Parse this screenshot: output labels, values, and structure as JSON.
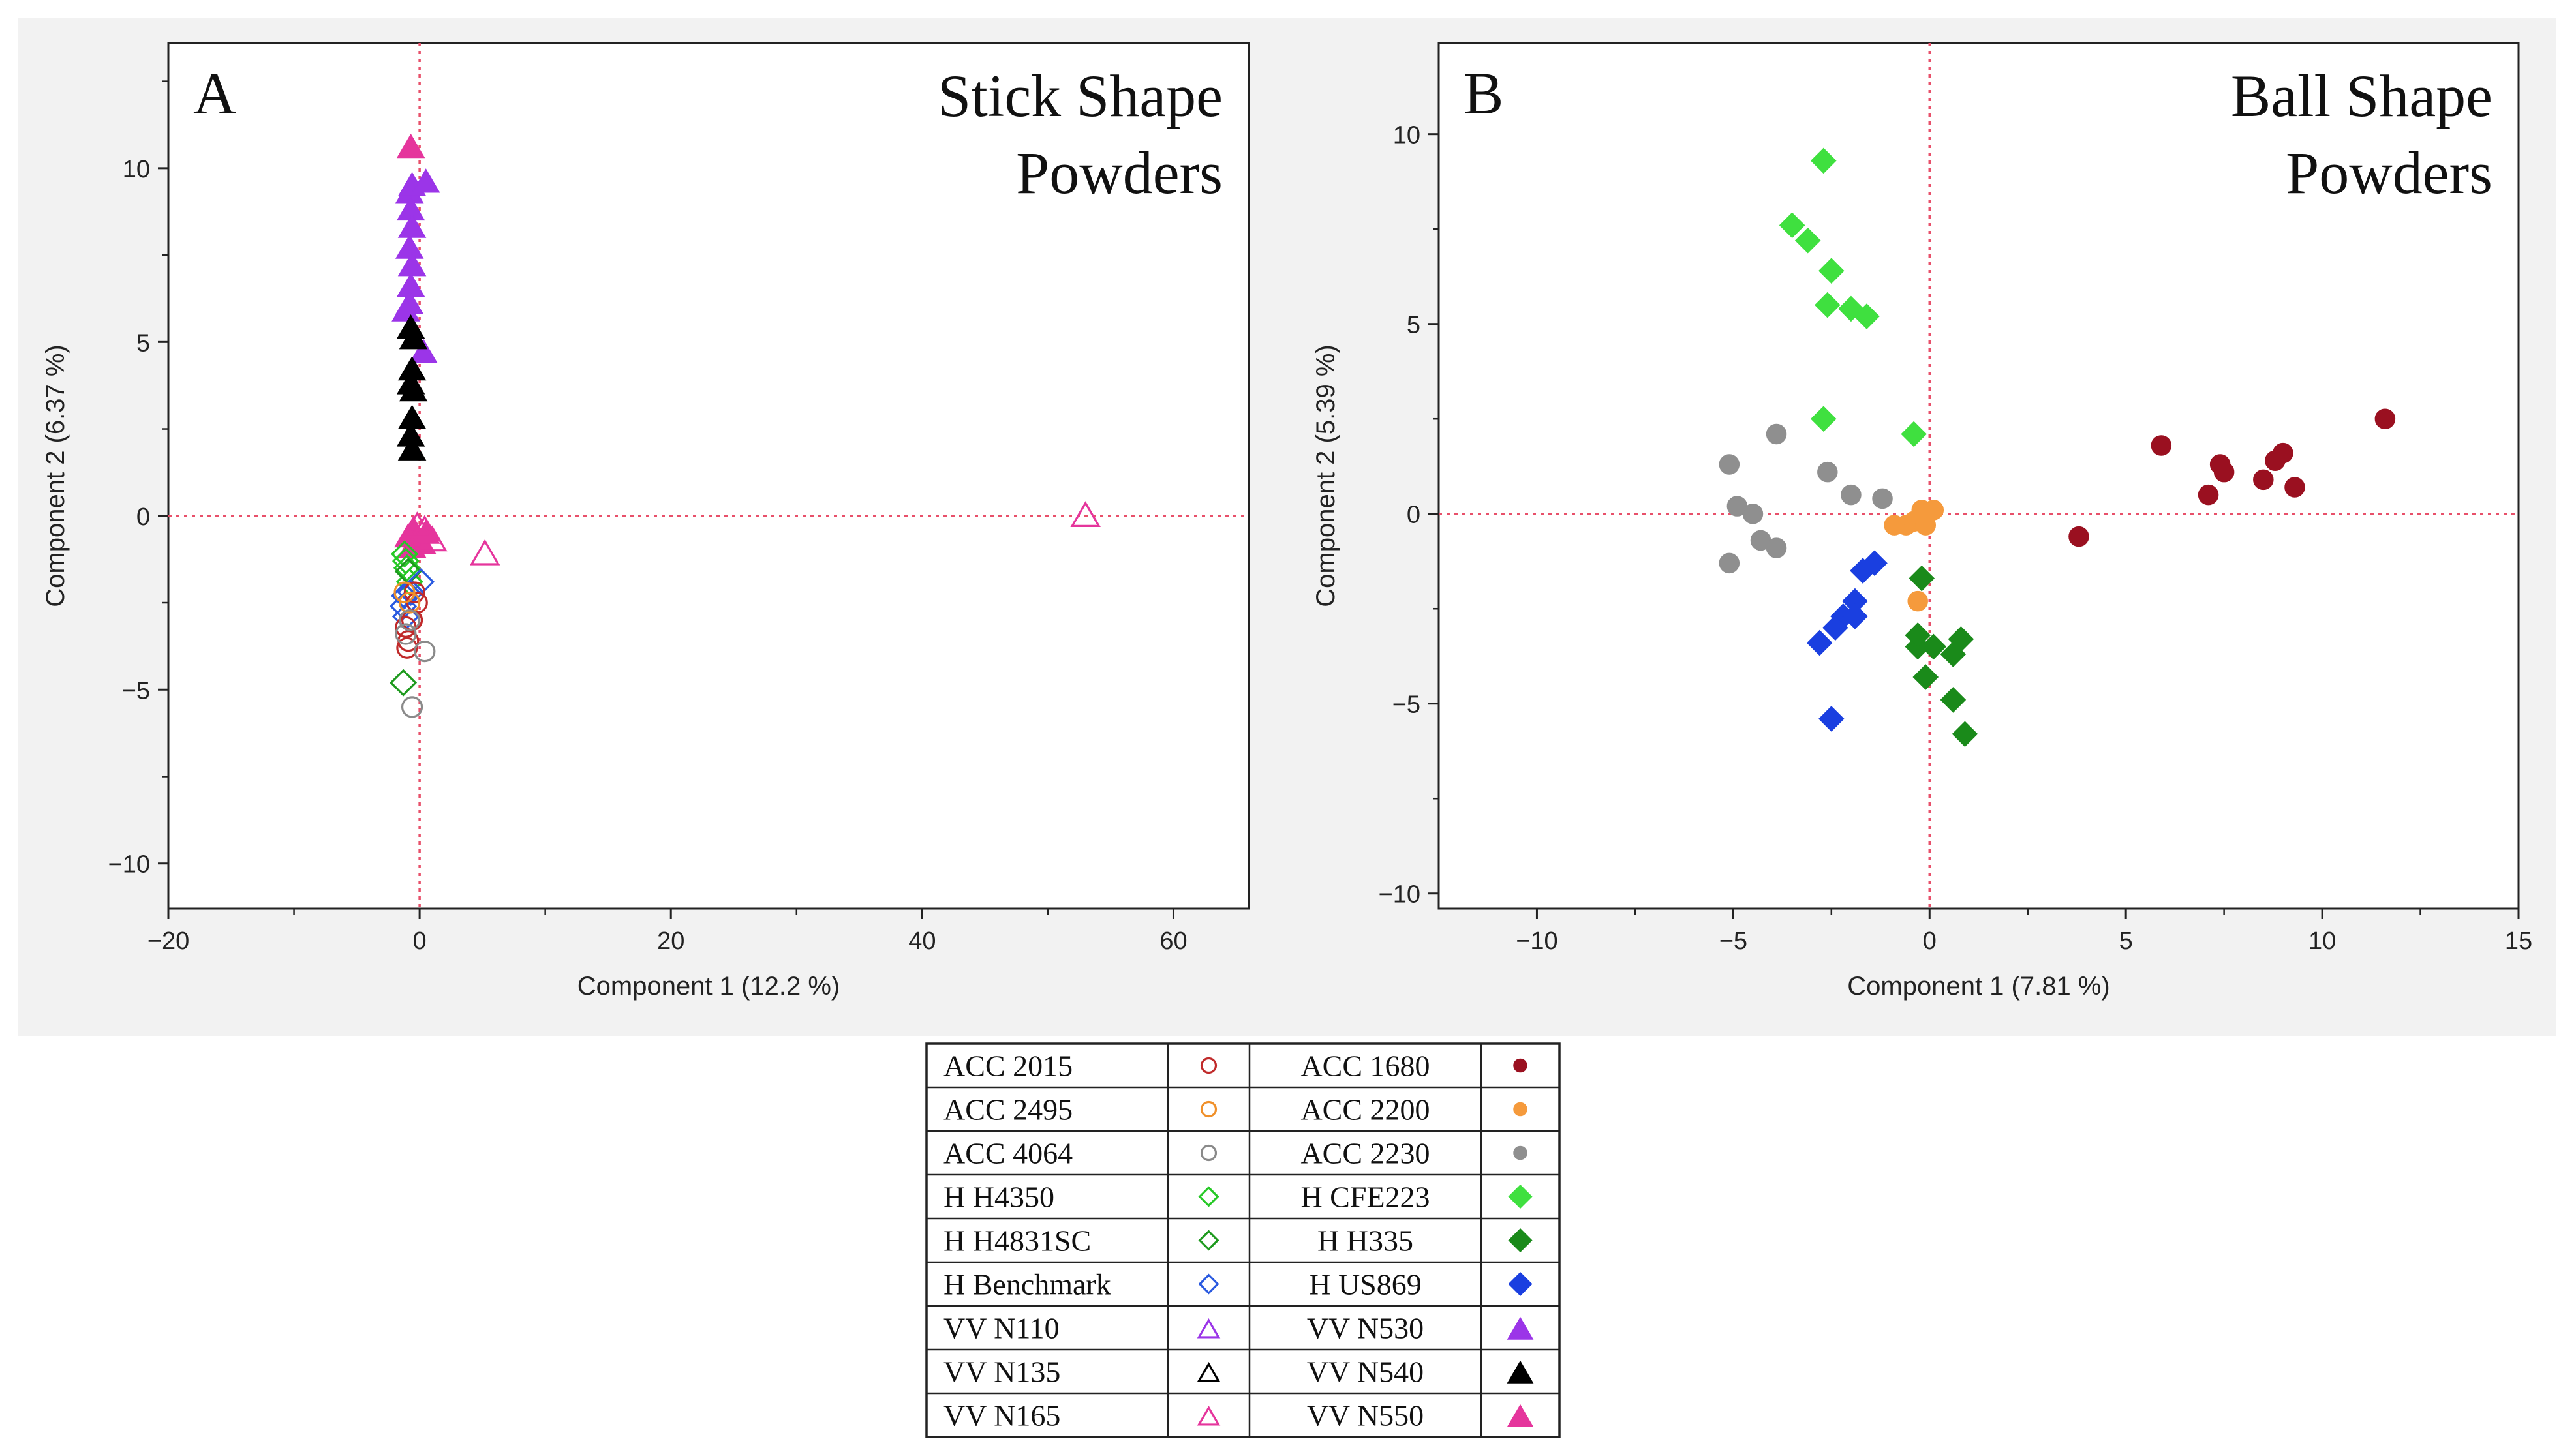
{
  "chart_data": [
    {
      "type": "scatter",
      "panel_label": "A",
      "title_lines": [
        "Stick Shape",
        "Powders"
      ],
      "xlabel": "Component 1  (12.2 %)",
      "ylabel": "Component 2  (6.37 %)",
      "xlim": [
        -20,
        66
      ],
      "ylim": [
        -11.3,
        13.6
      ],
      "xticks": [
        -20,
        0,
        20,
        40,
        60
      ],
      "yticks": [
        -10,
        -5,
        0,
        5,
        10
      ],
      "xtick_labels": [
        "−20",
        "0",
        "20",
        "40",
        "60"
      ],
      "ytick_labels": [
        "−10",
        "−5",
        "0",
        "5",
        "10"
      ],
      "xminor": [
        -10,
        10,
        30,
        50
      ],
      "yminor": [
        -7.5,
        -2.5,
        2.5,
        7.5,
        12.5
      ],
      "series": [
        {
          "name": "VV N530",
          "marker": "triangle",
          "filled": true,
          "color": "#9b35e8",
          "points": [
            [
              -0.8,
              9.3
            ],
            [
              -0.6,
              9.5
            ],
            [
              -0.7,
              8.8
            ],
            [
              -0.6,
              8.3
            ],
            [
              -0.8,
              7.7
            ],
            [
              -0.6,
              7.2
            ],
            [
              -0.7,
              6.6
            ],
            [
              -0.8,
              6.1
            ],
            [
              -1.1,
              5.9
            ],
            [
              0.5,
              9.6
            ],
            [
              0.3,
              4.7
            ]
          ]
        },
        {
          "name": "VV N550",
          "marker": "triangle",
          "filled": true,
          "color": "#e5359c",
          "points": [
            [
              -0.7,
              10.6
            ],
            [
              -0.5,
              -0.4
            ],
            [
              -0.3,
              -0.7
            ],
            [
              -0.6,
              -0.9
            ],
            [
              0.2,
              -0.8
            ],
            [
              0.5,
              -0.5
            ],
            [
              -0.9,
              -0.6
            ]
          ]
        },
        {
          "name": "VV N540",
          "marker": "triangle",
          "filled": true,
          "color": "#000000",
          "points": [
            [
              -0.7,
              5.4
            ],
            [
              -0.5,
              5.1
            ],
            [
              -0.6,
              4.2
            ],
            [
              -0.7,
              3.8
            ],
            [
              -0.5,
              3.6
            ],
            [
              -0.6,
              2.8
            ],
            [
              -0.7,
              2.3
            ],
            [
              -0.6,
              1.9
            ]
          ]
        },
        {
          "name": "VV N165",
          "marker": "triangle",
          "filled": false,
          "color": "#e5359c",
          "points": [
            [
              53,
              0
            ],
            [
              5.2,
              -1.1
            ],
            [
              1,
              -0.7
            ],
            [
              0.4,
              -0.4
            ],
            [
              -0.2,
              -0.3
            ]
          ]
        },
        {
          "name": "H H4350",
          "marker": "diamond",
          "filled": false,
          "color": "#27c927",
          "points": [
            [
              -1.2,
              -1.1
            ],
            [
              -1.0,
              -1.5
            ],
            [
              -0.8,
              -1.9
            ],
            [
              -1.1,
              -1.3
            ]
          ]
        },
        {
          "name": "H H4831SC",
          "marker": "diamond",
          "filled": false,
          "color": "#1e9a1e",
          "points": [
            [
              -1.3,
              -4.8
            ],
            [
              -0.9,
              -1.6
            ]
          ]
        },
        {
          "name": "H Benchmark",
          "marker": "diamond",
          "filled": false,
          "color": "#2a5ae0",
          "points": [
            [
              -1.3,
              -2.6
            ],
            [
              -1.1,
              -2.9
            ],
            [
              -0.7,
              -2.2
            ],
            [
              0.1,
              -1.9
            ],
            [
              -1.2,
              -2.3
            ]
          ]
        },
        {
          "name": "ACC 2015",
          "marker": "circle",
          "filled": false,
          "color": "#c02a2a",
          "points": [
            [
              -1.1,
              -3.2
            ],
            [
              -0.9,
              -3.6
            ],
            [
              -1.0,
              -3.8
            ],
            [
              -0.6,
              -3.0
            ],
            [
              -0.2,
              -2.5
            ],
            [
              -0.4,
              -2.2
            ]
          ]
        },
        {
          "name": "ACC 2495",
          "marker": "circle",
          "filled": false,
          "color": "#f0902a",
          "points": [
            [
              -1.2,
              -2.2
            ],
            [
              -0.8,
              -2.5
            ]
          ]
        },
        {
          "name": "ACC 4064",
          "marker": "circle",
          "filled": false,
          "color": "#8a8a8a",
          "points": [
            [
              -0.6,
              -5.5
            ],
            [
              0.4,
              -3.9
            ],
            [
              -1.1,
              -3.4
            ],
            [
              -0.8,
              -3.0
            ]
          ]
        }
      ]
    },
    {
      "type": "scatter",
      "panel_label": "B",
      "title_lines": [
        "Ball Shape",
        "Powders"
      ],
      "xlabel": "Component 1  (7.81 %)",
      "ylabel": "Component 2  (5.39 %)",
      "xlim": [
        -12.5,
        15
      ],
      "ylim": [
        -10.4,
        12.4
      ],
      "xticks": [
        -10,
        -5,
        0,
        5,
        10,
        15
      ],
      "yticks": [
        -10,
        -5,
        0,
        5,
        10
      ],
      "xtick_labels": [
        "−10",
        "−5",
        "0",
        "5",
        "10",
        "15"
      ],
      "ytick_labels": [
        "−10",
        "−5",
        "0",
        "5",
        "10"
      ],
      "xminor": [
        -12.5,
        -7.5,
        -2.5,
        2.5,
        7.5,
        12.5
      ],
      "yminor": [
        -7.5,
        -2.5,
        2.5,
        7.5
      ],
      "series": [
        {
          "name": "H CFE223",
          "marker": "diamond",
          "filled": true,
          "color": "#3fe03f",
          "points": [
            [
              -2.7,
              9.3
            ],
            [
              -3.5,
              7.6
            ],
            [
              -3.1,
              7.2
            ],
            [
              -2.5,
              6.4
            ],
            [
              -2.6,
              5.5
            ],
            [
              -2.0,
              5.4
            ],
            [
              -1.6,
              5.2
            ],
            [
              -2.7,
              2.5
            ],
            [
              -0.4,
              2.1
            ]
          ]
        },
        {
          "name": "ACC 2230",
          "marker": "circle",
          "filled": true,
          "color": "#8f8f8f",
          "points": [
            [
              -5.1,
              1.3
            ],
            [
              -3.9,
              2.1
            ],
            [
              -4.9,
              0.2
            ],
            [
              -4.5,
              0.0
            ],
            [
              -4.3,
              -0.7
            ],
            [
              -3.9,
              -0.9
            ],
            [
              -2.6,
              1.1
            ],
            [
              -2.0,
              0.5
            ],
            [
              -1.2,
              0.4
            ],
            [
              -5.1,
              -1.3
            ]
          ]
        },
        {
          "name": "ACC 2200",
          "marker": "circle",
          "filled": true,
          "color": "#f59a3c",
          "points": [
            [
              -0.2,
              0.1
            ],
            [
              -0.4,
              -0.2
            ],
            [
              -0.6,
              -0.3
            ],
            [
              -0.9,
              -0.3
            ],
            [
              -0.1,
              -0.3
            ],
            [
              0.1,
              0.1
            ],
            [
              -0.3,
              -2.3
            ]
          ]
        },
        {
          "name": "H US869",
          "marker": "diamond",
          "filled": true,
          "color": "#1a3fe0",
          "points": [
            [
              -1.4,
              -1.3
            ],
            [
              -1.7,
              -1.5
            ],
            [
              -1.9,
              -2.3
            ],
            [
              -2.2,
              -2.7
            ],
            [
              -2.4,
              -3.0
            ],
            [
              -2.8,
              -3.4
            ],
            [
              -2.5,
              -5.4
            ],
            [
              -1.9,
              -2.7
            ]
          ]
        },
        {
          "name": "H H335",
          "marker": "diamond",
          "filled": true,
          "color": "#1a8a1a",
          "points": [
            [
              -0.2,
              -1.7
            ],
            [
              -0.3,
              -3.5
            ],
            [
              0.1,
              -3.5
            ],
            [
              0.6,
              -3.7
            ],
            [
              0.8,
              -3.3
            ],
            [
              -0.1,
              -4.3
            ],
            [
              0.6,
              -4.9
            ],
            [
              0.9,
              -5.8
            ],
            [
              -0.3,
              -3.2
            ]
          ]
        },
        {
          "name": "ACC 1680",
          "marker": "circle",
          "filled": true,
          "color": "#9a1020",
          "points": [
            [
              3.8,
              -0.6
            ],
            [
              5.9,
              1.8
            ],
            [
              7.1,
              0.5
            ],
            [
              7.4,
              1.3
            ],
            [
              7.5,
              1.1
            ],
            [
              8.5,
              0.9
            ],
            [
              8.8,
              1.4
            ],
            [
              9.0,
              1.6
            ],
            [
              9.3,
              0.7
            ],
            [
              11.6,
              2.5
            ]
          ]
        }
      ]
    }
  ],
  "legend": {
    "rows": [
      [
        {
          "label": "ACC 2015",
          "marker": "circle",
          "filled": false,
          "color": "#c02a2a"
        },
        {
          "label": "ACC 1680",
          "marker": "circle",
          "filled": true,
          "color": "#9a1020"
        }
      ],
      [
        {
          "label": "ACC 2495",
          "marker": "circle",
          "filled": false,
          "color": "#f0902a"
        },
        {
          "label": "ACC 2200",
          "marker": "circle",
          "filled": true,
          "color": "#f59a3c"
        }
      ],
      [
        {
          "label": "ACC 4064",
          "marker": "circle",
          "filled": false,
          "color": "#8a8a8a"
        },
        {
          "label": "ACC 2230",
          "marker": "circle",
          "filled": true,
          "color": "#8f8f8f"
        }
      ],
      [
        {
          "label": "H H4350",
          "marker": "diamond",
          "filled": false,
          "color": "#27c927"
        },
        {
          "label": "H CFE223",
          "marker": "diamond",
          "filled": true,
          "color": "#3fe03f"
        }
      ],
      [
        {
          "label": "H H4831SC",
          "marker": "diamond",
          "filled": false,
          "color": "#1e9a1e"
        },
        {
          "label": "H H335",
          "marker": "diamond",
          "filled": true,
          "color": "#1a8a1a"
        }
      ],
      [
        {
          "label": "H Benchmark",
          "marker": "diamond",
          "filled": false,
          "color": "#2a5ae0"
        },
        {
          "label": "H US869",
          "marker": "diamond",
          "filled": true,
          "color": "#1a3fe0"
        }
      ],
      [
        {
          "label": "VV N110",
          "marker": "triangle",
          "filled": false,
          "color": "#9b35e8"
        },
        {
          "label": "VV N530",
          "marker": "triangle",
          "filled": true,
          "color": "#9b35e8"
        }
      ],
      [
        {
          "label": "VV N135",
          "marker": "triangle",
          "filled": false,
          "color": "#000000"
        },
        {
          "label": "VV N540",
          "marker": "triangle",
          "filled": true,
          "color": "#000000"
        }
      ],
      [
        {
          "label": "VV N165",
          "marker": "triangle",
          "filled": false,
          "color": "#e5359c"
        },
        {
          "label": "VV N550",
          "marker": "triangle",
          "filled": true,
          "color": "#e5359c"
        }
      ]
    ]
  },
  "colors": {
    "panel_background": "#f2f2f2",
    "refline": "#e8506a",
    "axis": "#222222"
  }
}
